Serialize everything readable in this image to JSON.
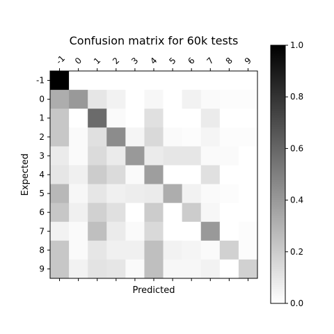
{
  "chart_data": {
    "type": "heatmap",
    "title": "Confusion matrix for 60k tests",
    "xlabel": "Predicted",
    "ylabel": "Expected",
    "x_labels": [
      "-1",
      "0",
      "1",
      "2",
      "3",
      "4",
      "5",
      "6",
      "7",
      "8",
      "9"
    ],
    "y_labels": [
      "-1",
      "0",
      "1",
      "2",
      "3",
      "4",
      "5",
      "6",
      "7",
      "8",
      "9"
    ],
    "colormap": "gray_r",
    "vmin": 0.0,
    "vmax": 1.0,
    "colorbar_ticks": [
      "0.0",
      "0.2",
      "0.4",
      "0.6",
      "0.8",
      "1.0"
    ],
    "values": [
      [
        1.0,
        0.0,
        0.0,
        0.0,
        0.0,
        0.0,
        0.0,
        0.0,
        0.0,
        0.0,
        0.0
      ],
      [
        0.32,
        0.4,
        0.1,
        0.05,
        0.0,
        0.03,
        0.0,
        0.05,
        0.02,
        0.01,
        0.01
      ],
      [
        0.22,
        0.0,
        0.58,
        0.02,
        0.0,
        0.12,
        0.0,
        0.0,
        0.08,
        0.0,
        0.0
      ],
      [
        0.22,
        0.02,
        0.12,
        0.45,
        0.04,
        0.15,
        0.02,
        0.01,
        0.04,
        0.01,
        0.01
      ],
      [
        0.08,
        0.02,
        0.14,
        0.08,
        0.4,
        0.08,
        0.1,
        0.1,
        0.02,
        0.02,
        0.0
      ],
      [
        0.1,
        0.06,
        0.2,
        0.14,
        0.02,
        0.38,
        0.0,
        0.0,
        0.12,
        0.0,
        0.0
      ],
      [
        0.28,
        0.03,
        0.1,
        0.06,
        0.07,
        0.08,
        0.32,
        0.05,
        0.02,
        0.01,
        0.0
      ],
      [
        0.22,
        0.06,
        0.18,
        0.12,
        0.0,
        0.2,
        0.0,
        0.2,
        0.03,
        0.0,
        0.0
      ],
      [
        0.05,
        0.02,
        0.25,
        0.08,
        0.02,
        0.15,
        0.0,
        0.0,
        0.4,
        0.0,
        0.01
      ],
      [
        0.22,
        0.02,
        0.1,
        0.06,
        0.06,
        0.25,
        0.05,
        0.04,
        0.02,
        0.18,
        0.01
      ],
      [
        0.22,
        0.05,
        0.11,
        0.1,
        0.02,
        0.25,
        0.03,
        0.03,
        0.05,
        0.0,
        0.18
      ]
    ]
  }
}
